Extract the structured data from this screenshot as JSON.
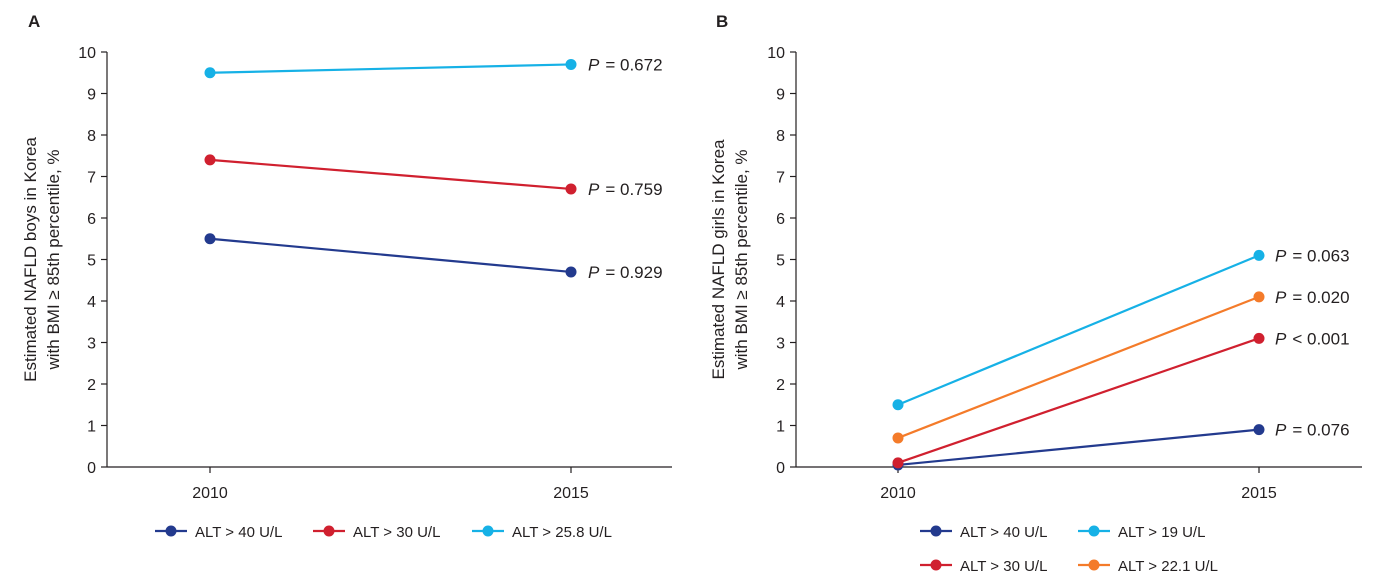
{
  "chart_data": [
    {
      "panel": "A",
      "type": "line",
      "x": [
        "2010",
        "2015"
      ],
      "ylabel": "Estimated NAFLD boys in Korea with BMI ≥ 85th percentile, %",
      "ylim": [
        0,
        10
      ],
      "yticks": [
        "0",
        "1",
        "2",
        "3",
        "4",
        "5",
        "6",
        "7",
        "8",
        "9",
        "10"
      ],
      "legend_position": "bottom",
      "series": [
        {
          "name": "ALT > 40 U/L",
          "color": "#233a8e",
          "values": [
            5.5,
            4.7
          ],
          "p_value": "= 0.929"
        },
        {
          "name": "ALT > 30 U/L",
          "color": "#d0202f",
          "values": [
            7.4,
            6.7
          ],
          "p_value": "= 0.759"
        },
        {
          "name": "ALT > 25.8 U/L",
          "color": "#16b1e6",
          "values": [
            9.5,
            9.7
          ],
          "p_value": "= 0.672"
        }
      ]
    },
    {
      "panel": "B",
      "type": "line",
      "x": [
        "2010",
        "2015"
      ],
      "ylabel": "Estimated NAFLD girls in Korea with BMI ≥ 85th percentile, %",
      "ylim": [
        0,
        10
      ],
      "yticks": [
        "0",
        "1",
        "2",
        "3",
        "4",
        "5",
        "6",
        "7",
        "8",
        "9",
        "10"
      ],
      "legend_position": "bottom",
      "series": [
        {
          "name": "ALT > 40 U/L",
          "color": "#233a8e",
          "values": [
            0.05,
            0.9
          ],
          "p_value": "= 0.076"
        },
        {
          "name": "ALT > 19 U/L",
          "color": "#16b1e6",
          "values": [
            1.5,
            5.1
          ],
          "p_value": "= 0.063"
        },
        {
          "name": "ALT > 30 U/L",
          "color": "#d0202f",
          "values": [
            0.1,
            3.1
          ],
          "p_value": "< 0.001"
        },
        {
          "name": "ALT > 22.1 U/L",
          "color": "#f47b2a",
          "values": [
            0.7,
            4.1
          ],
          "p_value": "= 0.020"
        }
      ]
    }
  ],
  "p_symbol": "P"
}
